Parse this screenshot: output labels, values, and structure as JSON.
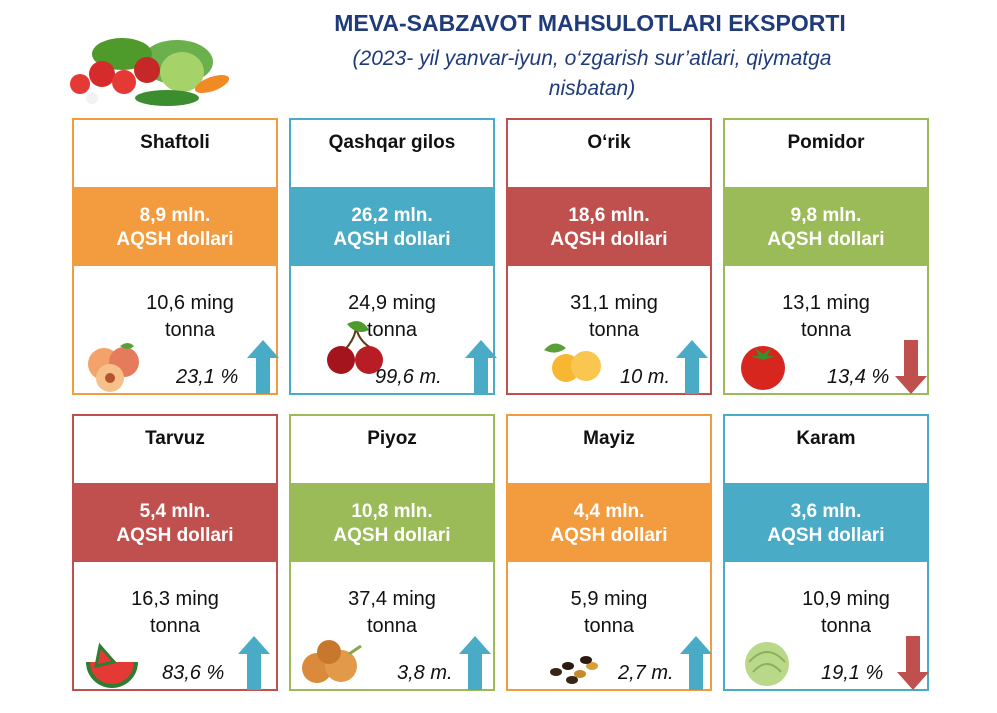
{
  "header": {
    "title": "MEVA-SABZAVOT MAHSULOTLARI EKSPORTI",
    "subtitle_line1": "(2023- yil yanvar-iyun, o‘zgarish sur’atlari, qiymatga",
    "subtitle_line2": "nisbatan)"
  },
  "cards": [
    {
      "name": "Shaftoli",
      "value_line": "8,9 mln.",
      "unit_line": "AQSH dollari",
      "qty_line": "10,6 ming",
      "qty_unit": "tonna",
      "change": "23,1 %",
      "trend": "up",
      "color": "#f39b3f",
      "image_icon": "peach-icon"
    },
    {
      "name": "Qashqar gilos",
      "value_line": "26,2 mln.",
      "unit_line": "AQSH dollari",
      "qty_line": "24,9 ming",
      "qty_unit": "tonna",
      "change": "99,6 m.",
      "trend": "up",
      "color": "#4aabc6",
      "image_icon": "cherry-icon"
    },
    {
      "name": "O‘rik",
      "value_line": "18,6 mln.",
      "unit_line": "AQSH dollari",
      "qty_line": "31,1 ming",
      "qty_unit": "tonna",
      "change": "10 m.",
      "trend": "up",
      "color": "#c0504d",
      "image_icon": "apricot-icon"
    },
    {
      "name": "Pomidor",
      "value_line": "9,8 mln.",
      "unit_line": "AQSH dollari",
      "qty_line": "13,1 ming",
      "qty_unit": "tonna",
      "change": "13,4 %",
      "trend": "down",
      "color": "#9bbb59",
      "image_icon": "tomato-icon"
    },
    {
      "name": "Tarvuz",
      "value_line": "5,4 mln.",
      "unit_line": "AQSH dollari",
      "qty_line": "16,3 ming",
      "qty_unit": "tonna",
      "change": "83,6 %",
      "trend": "up",
      "color": "#c0504d",
      "image_icon": "watermelon-icon"
    },
    {
      "name": "Piyoz",
      "value_line": "10,8 mln.",
      "unit_line": "AQSH dollari",
      "qty_line": "37,4  ming",
      "qty_unit": "tonna",
      "change": "3,8 m.",
      "trend": "up",
      "color": "#9bbb59",
      "image_icon": "onion-icon"
    },
    {
      "name": "Mayiz",
      "value_line": "4,4 mln.",
      "unit_line": "AQSH dollari",
      "qty_line": "5,9 ming",
      "qty_unit": "tonna",
      "change": "2,7 m.",
      "trend": "up",
      "color": "#f39b3f",
      "image_icon": "raisin-icon"
    },
    {
      "name": "Karam",
      "value_line": "3,6 mln.",
      "unit_line": "AQSH dollari",
      "qty_line": "10,9 ming",
      "qty_unit": "tonna",
      "change": "19,1 %",
      "trend": "down",
      "color": "#4aabc6",
      "image_icon": "cabbage-icon"
    }
  ],
  "trend_colors": {
    "up": "#4aabc6",
    "down": "#c0504d"
  }
}
